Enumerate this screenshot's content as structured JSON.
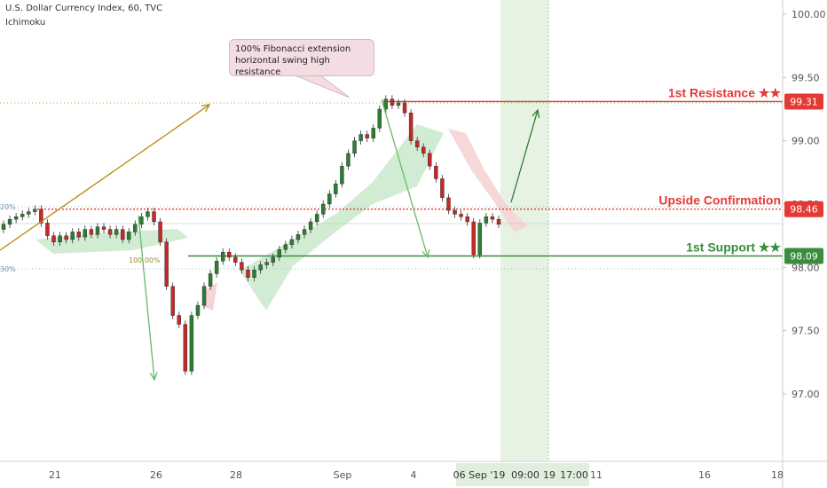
{
  "header": {
    "title": "U.S. Dollar Currency Index, 60, TVC",
    "indicator": "Ichimoku"
  },
  "callout": {
    "line1": "100% Fibonacci extension",
    "line2": "horizontal swing high resistance"
  },
  "levels": [
    {
      "label": "1st Resistance ★★",
      "value": 99.31,
      "badge": "99.31",
      "color": "#e53935",
      "style": "solid"
    },
    {
      "label": "Upside Confirmation",
      "value": 98.46,
      "badge": "98.46",
      "color": "#e53935",
      "style": "dotted"
    },
    {
      "label": "1st Support ★★",
      "value": 98.09,
      "badge": "98.09",
      "color": "#388e3c",
      "style": "solid"
    }
  ],
  "fib_labels": {
    "left_top": "20%",
    "left_bottom": "30%",
    "mid": "100.00%"
  },
  "colors": {
    "up": "#2e7d32",
    "down": "#c62828",
    "ichimoku_green": "#cdeacf",
    "ichimoku_red": "#f6d4d4",
    "highlight": "#e6f3e3",
    "fib": "#a5a53a"
  },
  "chart_data": {
    "type": "candlestick",
    "y_axis": {
      "ylim": [
        96.5,
        100.1
      ],
      "ticks": [
        97.0,
        97.5,
        98.0,
        98.5,
        99.0,
        99.5,
        100.0
      ],
      "tick_labels": [
        "97.00",
        "97.50",
        "98.00",
        "98.50",
        "99.00",
        "99.50",
        "100.00"
      ]
    },
    "x_axis": {
      "tick_labels": [
        "21",
        "26",
        "28",
        "Sep",
        "4",
        "11",
        "16",
        "18"
      ],
      "highlight_labels": [
        "06 Sep '19",
        "09:00",
        "19",
        "17:00"
      ]
    },
    "price_path": [
      [
        98.3,
        98.34
      ],
      [
        98.34,
        98.38
      ],
      [
        98.38,
        98.4
      ],
      [
        98.4,
        98.42
      ],
      [
        98.42,
        98.44
      ],
      [
        98.44,
        98.46
      ],
      [
        98.46,
        98.35
      ],
      [
        98.35,
        98.25
      ],
      [
        98.25,
        98.2
      ],
      [
        98.2,
        98.25
      ],
      [
        98.25,
        98.22
      ],
      [
        98.22,
        98.28
      ],
      [
        98.28,
        98.24
      ],
      [
        98.24,
        98.3
      ],
      [
        98.3,
        98.26
      ],
      [
        98.26,
        98.32
      ],
      [
        98.32,
        98.3
      ],
      [
        98.3,
        98.26
      ],
      [
        98.26,
        98.3
      ],
      [
        98.3,
        98.22
      ],
      [
        98.22,
        98.28
      ],
      [
        98.28,
        98.34
      ],
      [
        98.34,
        98.4
      ],
      [
        98.4,
        98.44
      ],
      [
        98.44,
        98.36
      ],
      [
        98.36,
        98.2
      ],
      [
        98.2,
        97.85
      ],
      [
        97.85,
        97.62
      ],
      [
        97.62,
        97.55
      ],
      [
        97.55,
        97.18
      ],
      [
        97.18,
        97.62
      ],
      [
        97.62,
        97.7
      ],
      [
        97.7,
        97.85
      ],
      [
        97.85,
        97.95
      ],
      [
        97.95,
        98.05
      ],
      [
        98.05,
        98.12
      ],
      [
        98.12,
        98.08
      ],
      [
        98.08,
        98.04
      ],
      [
        98.04,
        97.98
      ],
      [
        97.98,
        97.92
      ],
      [
        97.92,
        97.98
      ],
      [
        97.98,
        98.02
      ],
      [
        98.02,
        98.04
      ],
      [
        98.04,
        98.08
      ],
      [
        98.08,
        98.14
      ],
      [
        98.14,
        98.18
      ],
      [
        98.18,
        98.22
      ],
      [
        98.22,
        98.26
      ],
      [
        98.26,
        98.3
      ],
      [
        98.3,
        98.36
      ],
      [
        98.36,
        98.42
      ],
      [
        98.42,
        98.5
      ],
      [
        98.5,
        98.58
      ],
      [
        98.58,
        98.66
      ],
      [
        98.66,
        98.8
      ],
      [
        98.8,
        98.9
      ],
      [
        98.9,
        99.0
      ],
      [
        99.0,
        99.05
      ],
      [
        99.05,
        99.02
      ],
      [
        99.02,
        99.1
      ],
      [
        99.1,
        99.25
      ],
      [
        99.25,
        99.33
      ],
      [
        99.33,
        99.28
      ],
      [
        99.28,
        99.3
      ],
      [
        99.3,
        99.22
      ],
      [
        99.22,
        99.0
      ],
      [
        99.0,
        98.95
      ],
      [
        98.95,
        98.9
      ],
      [
        98.9,
        98.8
      ],
      [
        98.8,
        98.7
      ],
      [
        98.7,
        98.55
      ],
      [
        98.55,
        98.45
      ],
      [
        98.45,
        98.42
      ],
      [
        98.42,
        98.4
      ],
      [
        98.4,
        98.36
      ],
      [
        98.36,
        98.1
      ],
      [
        98.1,
        98.35
      ],
      [
        98.35,
        98.4
      ],
      [
        98.4,
        98.38
      ],
      [
        98.38,
        98.34
      ]
    ],
    "annotations": [
      "100% Fibonacci extension horizontal swing high resistance"
    ]
  }
}
